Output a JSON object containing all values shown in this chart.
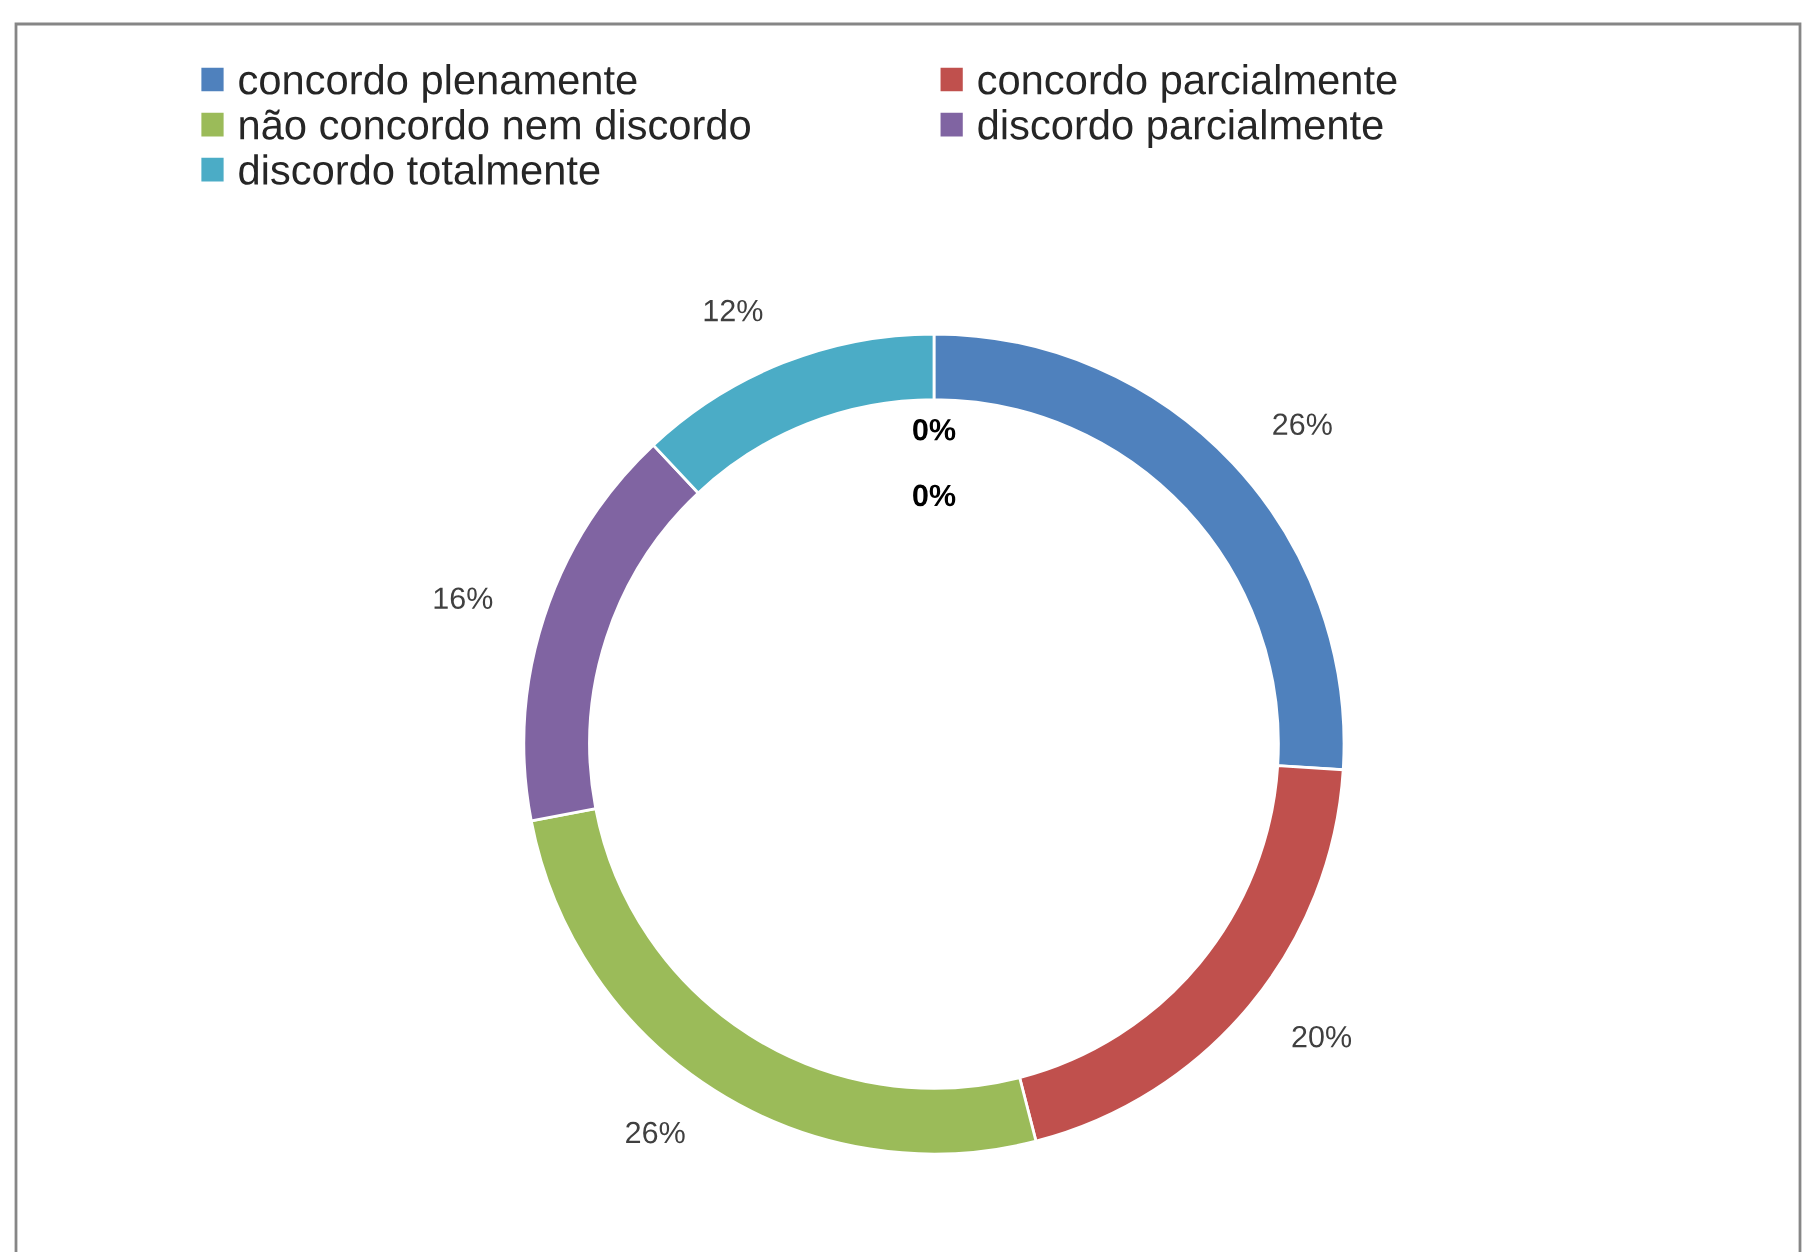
{
  "chart_data": {
    "type": "donut",
    "categories": [
      "concordo plenamente",
      "concordo parcialmente",
      "não concordo nem discordo",
      "discordo parcialmente",
      "discordo totalmente"
    ],
    "values": [
      26,
      20,
      26,
      16,
      12
    ],
    "colors": [
      "#4f81bd",
      "#c0504d",
      "#9bbb59",
      "#8064a2",
      "#4bacc6"
    ],
    "value_labels": [
      "26%",
      "20%",
      "26%",
      "16%",
      "12%"
    ],
    "annotations": [
      "0%",
      "0%"
    ],
    "legend": "top"
  }
}
